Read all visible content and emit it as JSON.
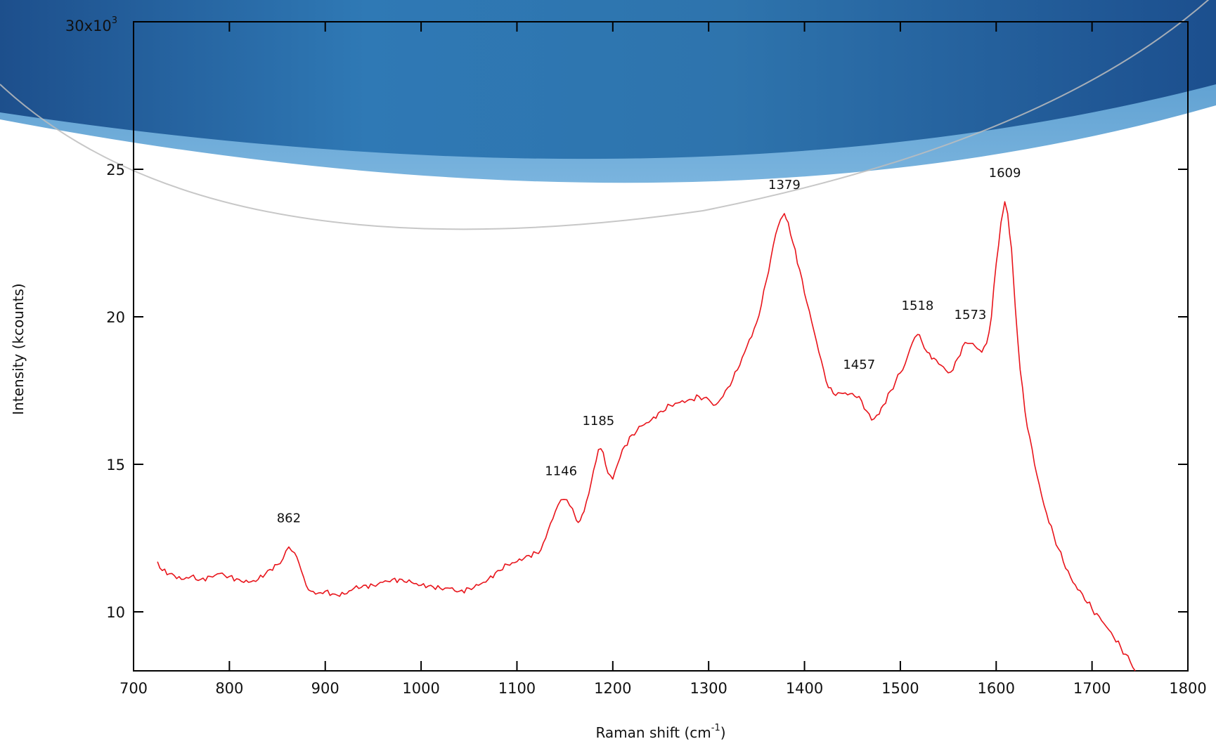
{
  "chart_data": {
    "type": "line",
    "xlabel": "Raman shift (cm",
    "xlabel_sup": "-1",
    "xlabel_tail": ")",
    "ylabel": "Intensity (kcounts)",
    "xlim": [
      700,
      1800
    ],
    "ylim": [
      8,
      30
    ],
    "grid": false,
    "x_ticks": [
      700,
      800,
      900,
      1000,
      1100,
      1200,
      1300,
      1400,
      1500,
      1600,
      1700,
      1800
    ],
    "y_ticks": [
      10,
      15,
      20,
      25
    ],
    "y_top_label": "30x10",
    "y_top_label_sup": "3",
    "series": [
      {
        "color": "#e8141b",
        "x": [
          725,
          730,
          740,
          750,
          760,
          770,
          780,
          790,
          800,
          810,
          820,
          830,
          840,
          850,
          856,
          862,
          868,
          875,
          880,
          885,
          890,
          900,
          910,
          920,
          930,
          940,
          950,
          960,
          970,
          980,
          990,
          1000,
          1010,
          1020,
          1030,
          1040,
          1050,
          1060,
          1070,
          1080,
          1090,
          1100,
          1110,
          1120,
          1125,
          1130,
          1135,
          1140,
          1146,
          1152,
          1158,
          1162,
          1166,
          1170,
          1175,
          1180,
          1185,
          1190,
          1195,
          1200,
          1205,
          1210,
          1220,
          1230,
          1240,
          1250,
          1260,
          1270,
          1280,
          1290,
          1300,
          1305,
          1310,
          1315,
          1320,
          1330,
          1340,
          1350,
          1355,
          1360,
          1365,
          1370,
          1375,
          1379,
          1383,
          1388,
          1395,
          1400,
          1405,
          1410,
          1415,
          1420,
          1425,
          1430,
          1440,
          1450,
          1457,
          1465,
          1470,
          1478,
          1482,
          1490,
          1495,
          1500,
          1505,
          1510,
          1515,
          1518,
          1522,
          1528,
          1535,
          1540,
          1545,
          1550,
          1555,
          1560,
          1565,
          1570,
          1573,
          1578,
          1585,
          1590,
          1595,
          1600,
          1605,
          1609,
          1612,
          1616,
          1620,
          1625,
          1630,
          1640,
          1650,
          1660,
          1670,
          1680,
          1690,
          1700,
          1710,
          1720,
          1730,
          1740,
          1745
        ],
        "y": [
          11.7,
          11.4,
          11.3,
          11.1,
          11.2,
          11.1,
          11.2,
          11.3,
          11.2,
          11.1,
          11.0,
          11.1,
          11.4,
          11.6,
          11.8,
          12.2,
          12.0,
          11.4,
          10.9,
          10.7,
          10.6,
          10.7,
          10.6,
          10.6,
          10.8,
          10.9,
          10.9,
          11.0,
          11.1,
          11.1,
          11.0,
          10.9,
          10.9,
          10.8,
          10.8,
          10.7,
          10.8,
          10.9,
          11.1,
          11.4,
          11.6,
          11.7,
          11.9,
          12.0,
          12.1,
          12.5,
          13.0,
          13.4,
          13.8,
          13.8,
          13.5,
          13.1,
          13.1,
          13.4,
          14.0,
          14.8,
          15.5,
          15.4,
          14.7,
          14.5,
          15.0,
          15.5,
          16.0,
          16.3,
          16.5,
          16.8,
          17.0,
          17.1,
          17.2,
          17.3,
          17.2,
          17.0,
          17.1,
          17.3,
          17.6,
          18.2,
          19.0,
          19.8,
          20.4,
          21.2,
          22.0,
          22.8,
          23.3,
          23.5,
          23.2,
          22.5,
          21.6,
          20.8,
          20.2,
          19.5,
          18.8,
          18.2,
          17.6,
          17.4,
          17.4,
          17.4,
          17.3,
          16.8,
          16.5,
          16.7,
          17.0,
          17.5,
          17.8,
          18.1,
          18.4,
          18.9,
          19.3,
          19.4,
          19.2,
          18.8,
          18.6,
          18.4,
          18.3,
          18.1,
          18.2,
          18.6,
          19.0,
          19.1,
          19.1,
          19.0,
          18.8,
          19.1,
          20.0,
          21.8,
          23.2,
          23.9,
          23.5,
          22.3,
          20.3,
          18.2,
          16.8,
          15.0,
          13.6,
          12.6,
          11.7,
          11.0,
          10.6,
          10.1,
          9.7,
          9.3,
          8.8,
          8.3,
          8.0
        ]
      }
    ],
    "annotations": [
      {
        "text": "862",
        "x": 862,
        "y": 12.2
      },
      {
        "text": "1146",
        "x": 1146,
        "y": 13.8
      },
      {
        "text": "1185",
        "x": 1185,
        "y": 15.5
      },
      {
        "text": "1379",
        "x": 1379,
        "y": 23.5
      },
      {
        "text": "1457",
        "x": 1457,
        "y": 17.4
      },
      {
        "text": "1518",
        "x": 1518,
        "y": 19.4
      },
      {
        "text": "1573",
        "x": 1573,
        "y": 19.1
      },
      {
        "text": "1609",
        "x": 1609,
        "y": 23.9
      }
    ],
    "background_banner_color": "#2b6cab"
  }
}
